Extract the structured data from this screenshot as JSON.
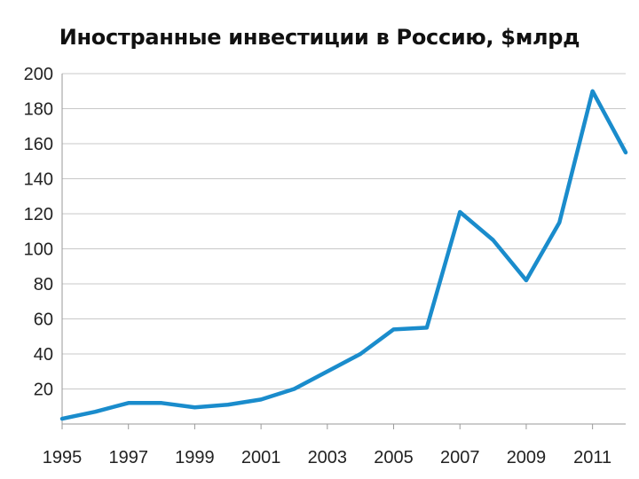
{
  "chart_data": {
    "type": "line",
    "title": "Иностранные инвестиции в Россию, $млрд",
    "xlabel": "",
    "ylabel": "",
    "x": [
      1995,
      1996,
      1997,
      1998,
      1999,
      2000,
      2001,
      2002,
      2003,
      2004,
      2005,
      2006,
      2007,
      2008,
      2009,
      2010,
      2011,
      2012
    ],
    "series": [
      {
        "values": [
          3,
          7,
          12,
          12,
          9.5,
          11,
          14,
          20,
          30,
          40,
          54,
          55,
          121,
          105,
          82,
          115,
          190,
          155
        ]
      }
    ],
    "xticks": [
      "1995",
      "1997",
      "1999",
      "2001",
      "2003",
      "2005",
      "2007",
      "2009",
      "2011"
    ],
    "yticks": [
      "20",
      "40",
      "60",
      "80",
      "100",
      "120",
      "140",
      "160",
      "180",
      "200"
    ],
    "xlim": [
      1995,
      2012
    ],
    "ylim": [
      0,
      200
    ],
    "grid": true,
    "legend": "none",
    "colors": {
      "line": "#1a8ccc",
      "grid": "#c8c8c8",
      "axis": "#9a9a9a"
    }
  }
}
